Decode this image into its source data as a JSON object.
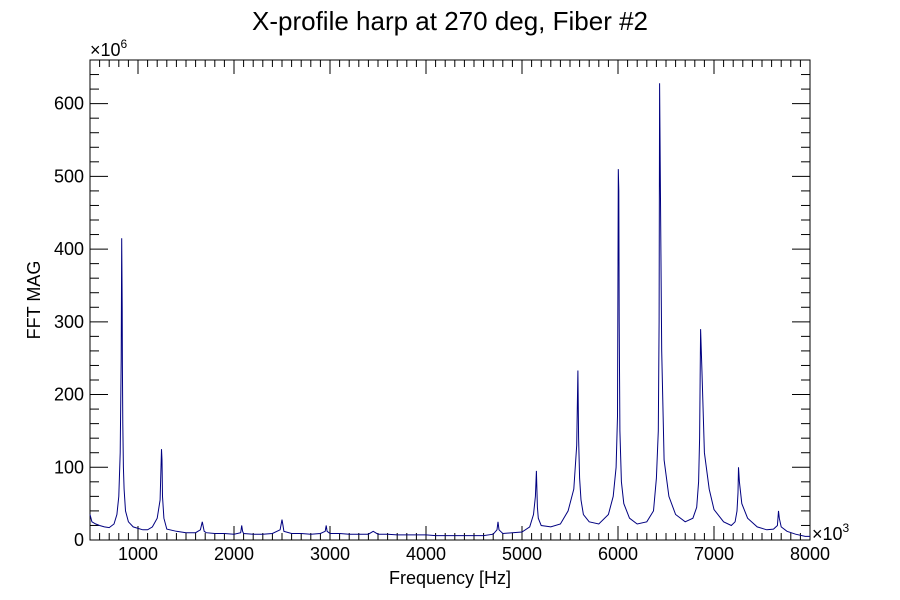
{
  "chart_data": {
    "type": "line",
    "title": "X-profile harp at 270 deg, Fiber #2",
    "xlabel": "Frequency [Hz]",
    "ylabel": "FFT MAG",
    "x_multiplier_label": "×10",
    "x_multiplier_exp": "3",
    "y_multiplier_label": "×10",
    "y_multiplier_exp": "6",
    "xlim": [
      500,
      8000
    ],
    "ylim": [
      0,
      660
    ],
    "x_ticks": [
      1000,
      2000,
      3000,
      4000,
      5000,
      6000,
      7000,
      8000
    ],
    "x_tick_labels": [
      "1000",
      "2000",
      "3000",
      "4000",
      "5000",
      "6000",
      "7000",
      "8000"
    ],
    "y_ticks": [
      0,
      100,
      200,
      300,
      400,
      500,
      600
    ],
    "y_tick_labels": [
      "0",
      "100",
      "200",
      "300",
      "400",
      "500",
      "600"
    ],
    "series_color": "#000080",
    "grid": false,
    "series": [
      {
        "x": [
          500,
          520,
          560,
          600,
          650,
          700,
          750,
          780,
          800,
          815,
          825,
          830,
          835,
          838,
          842,
          848,
          855,
          870,
          900,
          950,
          1000,
          1050,
          1100,
          1150,
          1200,
          1230,
          1245,
          1250,
          1255,
          1270,
          1300,
          1400,
          1500,
          1600,
          1650,
          1670,
          1680,
          1690,
          1710,
          1800,
          1900,
          2000,
          2070,
          2080,
          2090,
          2100,
          2200,
          2300,
          2400,
          2480,
          2500,
          2510,
          2520,
          2600,
          2700,
          2800,
          2900,
          2950,
          2960,
          2970,
          3000,
          3100,
          3200,
          3300,
          3400,
          3450,
          3500,
          3600,
          3700,
          3800,
          3900,
          4000,
          4100,
          4200,
          4300,
          4400,
          4500,
          4600,
          4700,
          4740,
          4750,
          4760,
          4800,
          4900,
          5000,
          5080,
          5120,
          5140,
          5150,
          5155,
          5160,
          5170,
          5200,
          5300,
          5400,
          5480,
          5540,
          5570,
          5582,
          5590,
          5600,
          5615,
          5640,
          5700,
          5800,
          5900,
          5950,
          5980,
          5995,
          6003,
          6008,
          6012,
          6020,
          6035,
          6060,
          6120,
          6200,
          6300,
          6370,
          6400,
          6420,
          6428,
          6433,
          6440,
          6455,
          6480,
          6530,
          6600,
          6700,
          6780,
          6820,
          6840,
          6850,
          6860,
          6875,
          6900,
          6950,
          7000,
          7100,
          7180,
          7220,
          7240,
          7250,
          7255,
          7265,
          7290,
          7350,
          7450,
          7550,
          7620,
          7660,
          7672,
          7680,
          7700,
          7760,
          7850,
          7950,
          8000
        ],
        "y": [
          35,
          25,
          22,
          20,
          18,
          17,
          22,
          35,
          60,
          120,
          250,
          415,
          320,
          240,
          160,
          100,
          70,
          40,
          25,
          18,
          16,
          14,
          14,
          18,
          30,
          55,
          125,
          110,
          60,
          30,
          15,
          12,
          10,
          10,
          14,
          25,
          18,
          12,
          10,
          9,
          9,
          8,
          10,
          20,
          12,
          9,
          8,
          8,
          9,
          14,
          28,
          20,
          12,
          9,
          9,
          8,
          9,
          12,
          20,
          12,
          9,
          9,
          8,
          8,
          8,
          12,
          8,
          8,
          7,
          7,
          7,
          7,
          6,
          6,
          6,
          6,
          6,
          6,
          8,
          14,
          25,
          14,
          9,
          10,
          11,
          18,
          35,
          60,
          95,
          70,
          45,
          30,
          20,
          18,
          22,
          40,
          70,
          130,
          233,
          140,
          85,
          55,
          35,
          25,
          22,
          35,
          60,
          100,
          170,
          510,
          480,
          300,
          150,
          80,
          50,
          30,
          22,
          25,
          40,
          85,
          150,
          300,
          628,
          520,
          260,
          110,
          60,
          35,
          25,
          30,
          45,
          80,
          140,
          290,
          230,
          120,
          70,
          42,
          25,
          20,
          25,
          40,
          65,
          100,
          80,
          50,
          30,
          18,
          14,
          15,
          20,
          40,
          30,
          18,
          12,
          8,
          5,
          5
        ]
      }
    ]
  }
}
